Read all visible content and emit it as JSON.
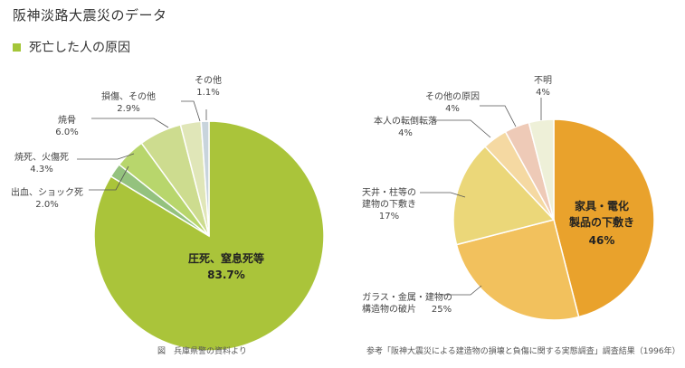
{
  "title": "阪神淡路大震災のデータ",
  "section_label": "死亡した人の原因",
  "colors": {
    "accent": "#a4c639"
  },
  "chart_data": [
    {
      "type": "pie",
      "title": "",
      "slices": [
        {
          "label": "圧死、窒息死等",
          "value_label": "83.7%",
          "value": 83.7,
          "color": "#aac43a"
        },
        {
          "label": "出血、ショック死",
          "value_label": "2.0%",
          "value": 2.0,
          "color": "#94c27e"
        },
        {
          "label": "焼死、火傷死",
          "value_label": "4.3%",
          "value": 4.3,
          "color": "#b8d66c"
        },
        {
          "label": "焼骨",
          "value_label": "6.0%",
          "value": 6.0,
          "color": "#cddc8f"
        },
        {
          "label": "損傷、その他",
          "value_label": "2.9%",
          "value": 2.9,
          "color": "#e0e6b8"
        },
        {
          "label": "その他",
          "value_label": "1.1%",
          "value": 1.1,
          "color": "#c8d4dc"
        }
      ],
      "source": "図　兵庫県警の資料より"
    },
    {
      "type": "pie",
      "title": "",
      "slices": [
        {
          "label": "家具・電化製品の下敷き",
          "label_lines": [
            "家具・電化",
            "製品の下敷き"
          ],
          "value_label": "46%",
          "value": 46,
          "color": "#e9a22c"
        },
        {
          "label": "ガラス・金属・建物の構造物の破片",
          "label_lines": [
            "ガラス・金属・建物の",
            "構造物の破片"
          ],
          "value_label": "25%",
          "value": 25,
          "color": "#f2c15d"
        },
        {
          "label": "天井・柱等の建物の下敷き",
          "label_lines": [
            "天井・柱等の",
            "建物の下敷き"
          ],
          "value_label": "17%",
          "value": 17,
          "color": "#ebd779"
        },
        {
          "label": "本人の転倒転落",
          "label_lines": [
            "本人の転倒転落"
          ],
          "value_label": "4%",
          "value": 4,
          "color": "#f5d9a2"
        },
        {
          "label": "その他の原因",
          "label_lines": [
            "その他の原因"
          ],
          "value_label": "4%",
          "value": 4,
          "color": "#eecab7"
        },
        {
          "label": "不明",
          "label_lines": [
            "不明"
          ],
          "value_label": "4%",
          "value": 4,
          "color": "#eef0d8"
        }
      ],
      "source": "参考「阪神大震災による建造物の損壊と負傷に関する実態調査」調査結果（1996年）"
    }
  ]
}
